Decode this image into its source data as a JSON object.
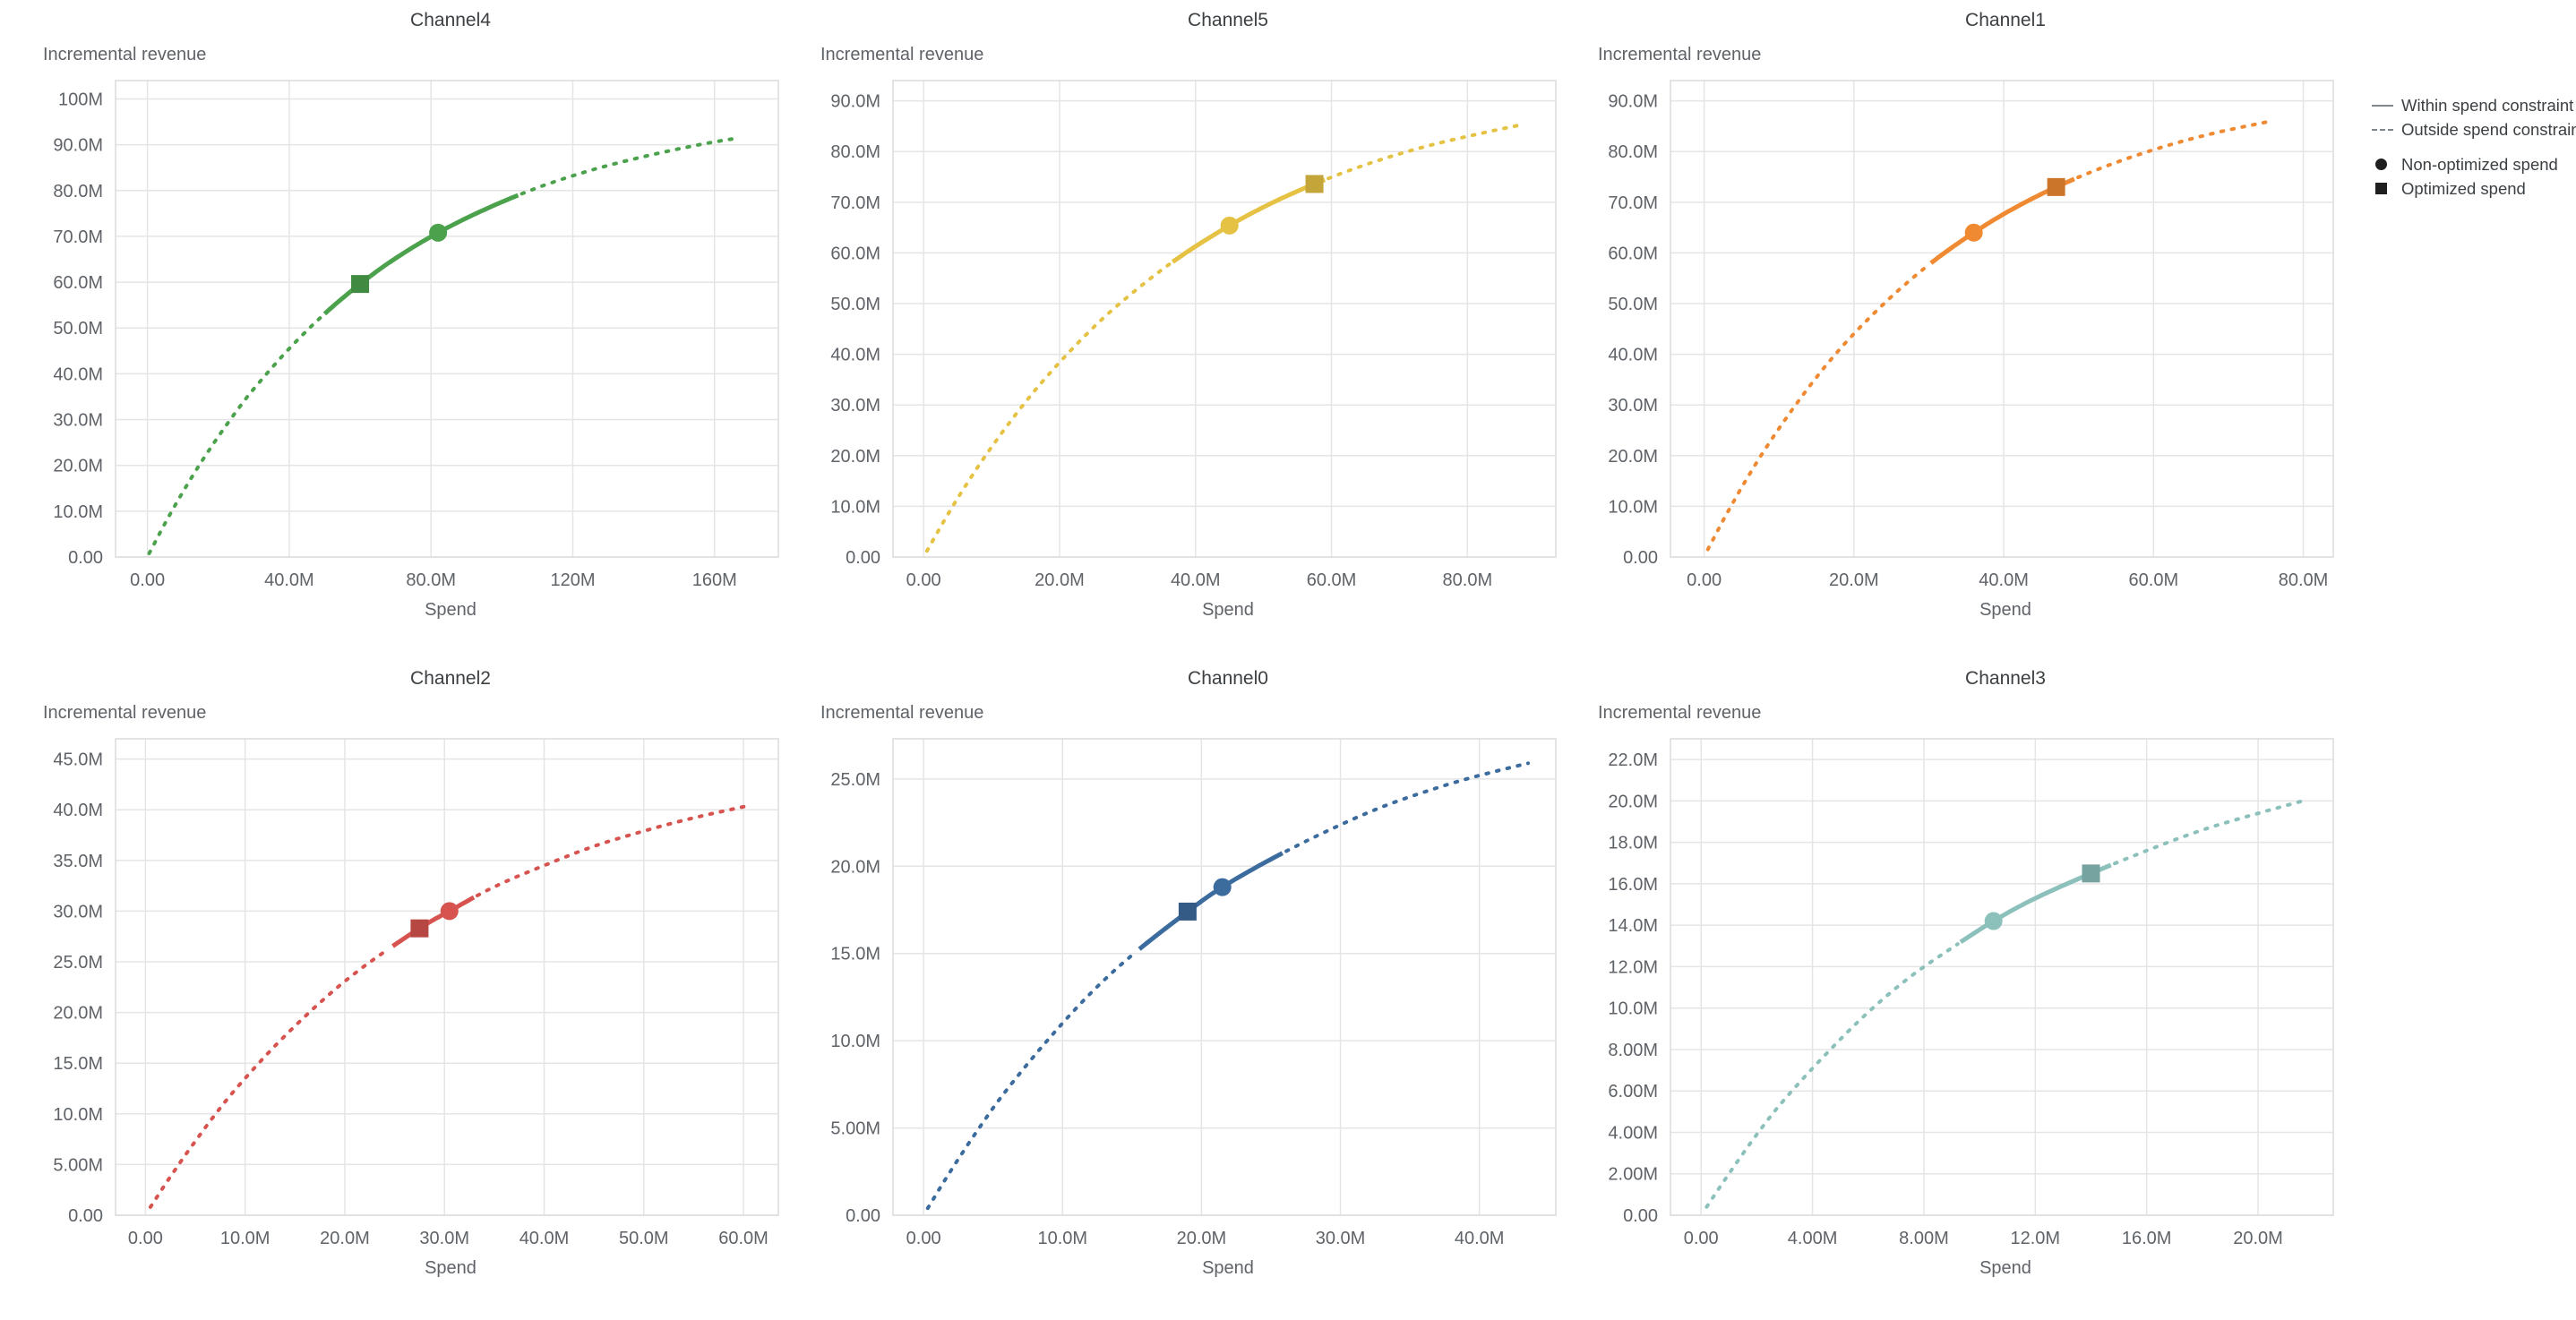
{
  "page": {
    "background": "#ffffff"
  },
  "legend": {
    "line_color": "#80868b",
    "marker_color": "#1f1f1f",
    "items": [
      {
        "type": "line-solid",
        "label": "Within spend constraint"
      },
      {
        "type": "line-dashed",
        "label": "Outside spend constraint"
      },
      {
        "type": "marker-circle",
        "label": "Non-optimized spend"
      },
      {
        "type": "marker-square",
        "label": "Optimized spend"
      }
    ]
  },
  "chart_data": [
    {
      "type": "line",
      "title": "Channel4",
      "x_axis_title": "Spend",
      "y_axis_title": "Incremental revenue",
      "color": "#4ca24c",
      "xlim": [
        -9,
        178
      ],
      "ylim": [
        0,
        104
      ],
      "x_ticks": {
        "values": [
          0,
          40,
          80,
          120,
          160
        ],
        "labels": [
          "0.00",
          "40.0M",
          "80.0M",
          "120M",
          "160M"
        ]
      },
      "y_ticks": {
        "values": [
          0,
          10,
          20,
          30,
          40,
          50,
          60,
          70,
          80,
          90,
          100
        ],
        "labels": [
          "0.00",
          "10.0M",
          "20.0M",
          "30.0M",
          "40.0M",
          "50.0M",
          "60.0M",
          "70.0M",
          "80.0M",
          "90.0M",
          "100M"
        ]
      },
      "curve_points": [
        [
          0.5,
          0.8
        ],
        [
          5,
          7.4
        ],
        [
          10,
          14.2
        ],
        [
          15,
          20.5
        ],
        [
          20,
          26.3
        ],
        [
          25,
          31.7
        ],
        [
          30,
          36.7
        ],
        [
          40,
          45.5
        ],
        [
          50,
          53.1
        ],
        [
          60,
          59.6
        ],
        [
          70,
          65.2
        ],
        [
          82,
          70.8
        ],
        [
          95,
          75.8
        ],
        [
          110,
          80.6
        ],
        [
          125,
          84.4
        ],
        [
          140,
          87.4
        ],
        [
          155,
          89.9
        ],
        [
          166,
          91.4
        ]
      ],
      "solid_range": [
        50,
        105
      ],
      "markers": {
        "non_optimized": [
          82,
          70.8
        ],
        "optimized": [
          60,
          59.6
        ]
      }
    },
    {
      "type": "line",
      "title": "Channel5",
      "x_axis_title": "Spend",
      "y_axis_title": "Incremental revenue",
      "color": "#e5c243",
      "xlim": [
        -4.5,
        93
      ],
      "ylim": [
        0,
        94
      ],
      "x_ticks": {
        "values": [
          0,
          20,
          40,
          60,
          80
        ],
        "labels": [
          "0.00",
          "20.0M",
          "40.0M",
          "60.0M",
          "80.0M"
        ]
      },
      "y_ticks": {
        "values": [
          0,
          10,
          20,
          30,
          40,
          50,
          60,
          70,
          80,
          90
        ],
        "labels": [
          "0.00",
          "10.0M",
          "20.0M",
          "30.0M",
          "40.0M",
          "50.0M",
          "60.0M",
          "70.0M",
          "80.0M",
          "90.0M"
        ]
      },
      "curve_points": [
        [
          0.5,
          1.2
        ],
        [
          3,
          7.1
        ],
        [
          6,
          13.7
        ],
        [
          10,
          21.7
        ],
        [
          15,
          30.6
        ],
        [
          20,
          38.4
        ],
        [
          26,
          46.6
        ],
        [
          32,
          53.5
        ],
        [
          38,
          59.5
        ],
        [
          45,
          65.4
        ],
        [
          51,
          69.7
        ],
        [
          57.5,
          73.6
        ],
        [
          65,
          77.4
        ],
        [
          73,
          80.7
        ],
        [
          81,
          83.3
        ],
        [
          88,
          85.3
        ]
      ],
      "solid_range": [
        36.5,
        59.5
      ],
      "markers": {
        "non_optimized": [
          45,
          65.4
        ],
        "optimized": [
          57.5,
          73.6
        ]
      }
    },
    {
      "type": "line",
      "title": "Channel1",
      "x_axis_title": "Spend",
      "y_axis_title": "Incremental revenue",
      "color": "#ef8a33",
      "xlim": [
        -4.5,
        84
      ],
      "ylim": [
        0,
        94
      ],
      "x_ticks": {
        "values": [
          0,
          20,
          40,
          60,
          80
        ],
        "labels": [
          "0.00",
          "20.0M",
          "40.0M",
          "60.0M",
          "80.0M"
        ]
      },
      "y_ticks": {
        "values": [
          0,
          10,
          20,
          30,
          40,
          50,
          60,
          70,
          80,
          90
        ],
        "labels": [
          "0.00",
          "10.0M",
          "20.0M",
          "30.0M",
          "40.0M",
          "50.0M",
          "60.0M",
          "70.0M",
          "80.0M",
          "90.0M"
        ]
      },
      "curve_points": [
        [
          0.5,
          1.5
        ],
        [
          3,
          8.5
        ],
        [
          6,
          16.2
        ],
        [
          9,
          23.2
        ],
        [
          13,
          31.6
        ],
        [
          17,
          39.1
        ],
        [
          21,
          45.6
        ],
        [
          26,
          52.7
        ],
        [
          31,
          58.8
        ],
        [
          36,
          64.0
        ],
        [
          41,
          68.5
        ],
        [
          47,
          73.0
        ],
        [
          54,
          77.3
        ],
        [
          61,
          80.8
        ],
        [
          68,
          83.6
        ],
        [
          76,
          86.1
        ]
      ],
      "solid_range": [
        30,
        49.5
      ],
      "markers": {
        "non_optimized": [
          36,
          64.0
        ],
        "optimized": [
          47,
          73.0
        ]
      }
    },
    {
      "type": "line",
      "title": "Channel2",
      "x_axis_title": "Spend",
      "y_axis_title": "Incremental revenue",
      "color": "#d7534f",
      "xlim": [
        -3,
        63.5
      ],
      "ylim": [
        0,
        47
      ],
      "x_ticks": {
        "values": [
          0,
          10,
          20,
          30,
          40,
          50,
          60
        ],
        "labels": [
          "0.00",
          "10.0M",
          "20.0M",
          "30.0M",
          "40.0M",
          "50.0M",
          "60.0M"
        ]
      },
      "y_ticks": {
        "values": [
          0,
          5,
          10,
          15,
          20,
          25,
          30,
          35,
          40,
          45
        ],
        "labels": [
          "0.00",
          "5.00M",
          "10.0M",
          "15.0M",
          "20.0M",
          "25.0M",
          "30.0M",
          "35.0M",
          "40.0M",
          "45.0M"
        ]
      },
      "curve_points": [
        [
          0.5,
          0.8
        ],
        [
          2.5,
          3.8
        ],
        [
          5,
          7.3
        ],
        [
          8,
          11.2
        ],
        [
          11,
          14.6
        ],
        [
          14,
          17.7
        ],
        [
          18,
          21.4
        ],
        [
          22,
          24.6
        ],
        [
          27.5,
          28.3
        ],
        [
          30.5,
          30.0
        ],
        [
          35,
          32.4
        ],
        [
          40,
          34.5
        ],
        [
          45,
          36.4
        ],
        [
          50,
          37.9
        ],
        [
          55,
          39.2
        ],
        [
          60.5,
          40.4
        ]
      ],
      "solid_range": [
        24.5,
        33
      ],
      "markers": {
        "non_optimized": [
          30.5,
          30.0
        ],
        "optimized": [
          27.5,
          28.3
        ]
      }
    },
    {
      "type": "line",
      "title": "Channel0",
      "x_axis_title": "Spend",
      "y_axis_title": "Incremental revenue",
      "color": "#3c6b9e",
      "xlim": [
        -2.2,
        45.5
      ],
      "ylim": [
        0,
        27.3
      ],
      "x_ticks": {
        "values": [
          0,
          10,
          20,
          30,
          40
        ],
        "labels": [
          "0.00",
          "10.0M",
          "20.0M",
          "30.0M",
          "40.0M"
        ]
      },
      "y_ticks": {
        "values": [
          0,
          5,
          10,
          15,
          20,
          25
        ],
        "labels": [
          "0.00",
          "5.00M",
          "10.0M",
          "15.0M",
          "20.0M",
          "25.0M"
        ]
      },
      "curve_points": [
        [
          0.3,
          0.4
        ],
        [
          2,
          2.6
        ],
        [
          4,
          5.0
        ],
        [
          6,
          7.2
        ],
        [
          9,
          10.1
        ],
        [
          12,
          12.7
        ],
        [
          15,
          14.9
        ],
        [
          19,
          17.4
        ],
        [
          21.5,
          18.8
        ],
        [
          25,
          20.4
        ],
        [
          29,
          22.0
        ],
        [
          33,
          23.4
        ],
        [
          37,
          24.5
        ],
        [
          40,
          25.2
        ],
        [
          43.5,
          25.9
        ]
      ],
      "solid_range": [
        15.5,
        26
      ],
      "markers": {
        "non_optimized": [
          21.5,
          18.8
        ],
        "optimized": [
          19,
          17.4
        ]
      }
    },
    {
      "type": "line",
      "title": "Channel3",
      "x_axis_title": "Spend",
      "y_axis_title": "Incremental revenue",
      "color": "#8bc0bb",
      "xlim": [
        -1.1,
        22.7
      ],
      "ylim": [
        0,
        23
      ],
      "x_ticks": {
        "values": [
          0,
          4,
          8,
          12,
          16,
          20
        ],
        "labels": [
          "0.00",
          "4.00M",
          "8.00M",
          "12.0M",
          "16.0M",
          "20.0M"
        ]
      },
      "y_ticks": {
        "values": [
          0,
          2,
          4,
          6,
          8,
          10,
          12,
          14,
          16,
          18,
          20,
          22
        ],
        "labels": [
          "0.00",
          "2.00M",
          "4.00M",
          "6.00M",
          "8.00M",
          "10.0M",
          "12.0M",
          "14.0M",
          "16.0M",
          "18.0M",
          "20.0M",
          "22.0M"
        ]
      },
      "curve_points": [
        [
          0.2,
          0.4
        ],
        [
          1,
          2.0
        ],
        [
          2,
          3.9
        ],
        [
          3,
          5.6
        ],
        [
          4.5,
          7.8
        ],
        [
          6,
          9.8
        ],
        [
          7.5,
          11.5
        ],
        [
          9,
          12.9
        ],
        [
          10.5,
          14.2
        ],
        [
          12,
          15.3
        ],
        [
          14,
          16.5
        ],
        [
          16,
          17.6
        ],
        [
          18,
          18.6
        ],
        [
          20,
          19.4
        ],
        [
          21.6,
          20.0
        ]
      ],
      "solid_range": [
        9.3,
        14.8
      ],
      "markers": {
        "non_optimized": [
          10.5,
          14.2
        ],
        "optimized": [
          14,
          16.5
        ]
      }
    }
  ]
}
